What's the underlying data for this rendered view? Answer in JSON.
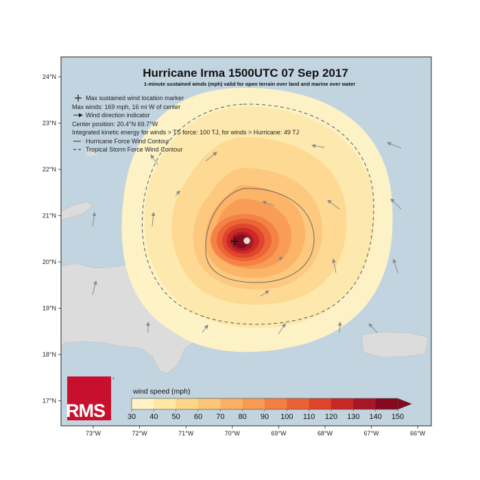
{
  "title": "Hurricane Irma 1500UTC 07 Sep 2017",
  "subtitle": "1-minute sustained winds (mph) valid for open terrain over land and marine over water",
  "legend": {
    "marker_text": "Max sustained wind location marker",
    "max_winds": "Max winds: 169 mph, 16 mi W of center",
    "direction_text": "Wind direction indicator",
    "center": "Center position: 20.4°N 69.7°W",
    "ike": "Integrated kinetic energy for winds > TS force: 100 TJ, for winds > Hurricane: 49 TJ",
    "hurricane_contour": "Hurricane Force Wind Contour",
    "ts_contour": "Tropical Storm Force Wind Contour"
  },
  "lat_ticks": [
    "24°N",
    "23°N",
    "22°N",
    "21°N",
    "20°N",
    "19°N",
    "18°N",
    "17°N"
  ],
  "lon_ticks": [
    "73°W",
    "72°W",
    "71°W",
    "70°W",
    "69°W",
    "68°W",
    "67°W",
    "66°W"
  ],
  "colorbar": {
    "label": "wind speed (mph)",
    "ticks": [
      "30",
      "40",
      "50",
      "60",
      "70",
      "80",
      "90",
      "100",
      "110",
      "120",
      "130",
      "140",
      "150"
    ],
    "colors": [
      "#fff2c4",
      "#fde6a6",
      "#fdd68a",
      "#fcc678",
      "#fbb065",
      "#f99a52",
      "#f47f42",
      "#eb6134",
      "#df432b",
      "#c92626",
      "#a81727",
      "#860a1f"
    ]
  },
  "logo": {
    "text": "RMS",
    "mark": "*"
  },
  "colors": {
    "ocean": "#c2d4e0",
    "land": "#dcdcdc"
  }
}
